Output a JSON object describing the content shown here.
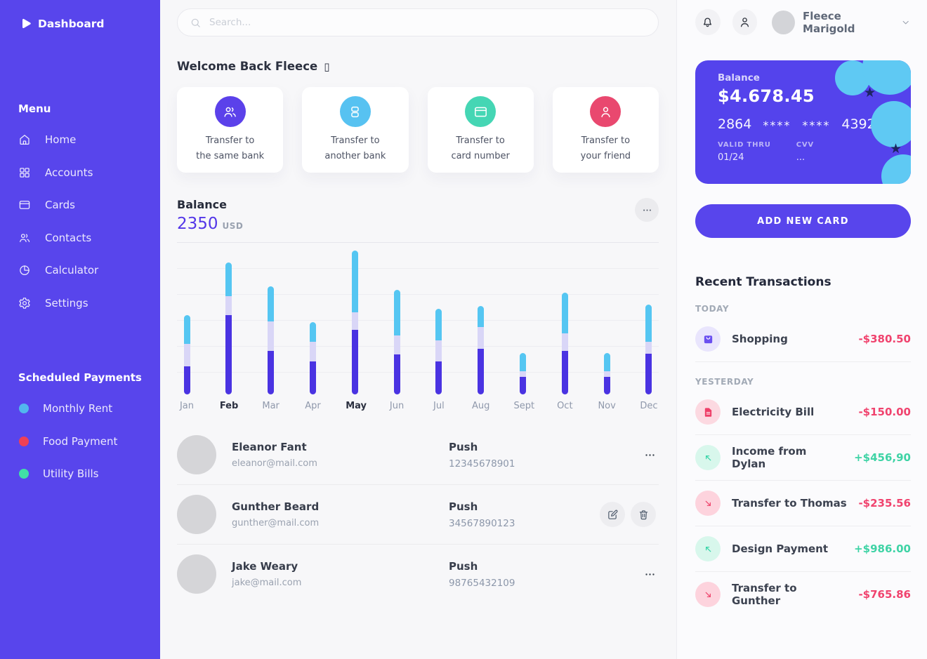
{
  "sidebar": {
    "brand": {
      "name": "Dashboard",
      "icon": "play-icon"
    },
    "menu_label": "Menu",
    "menu": [
      {
        "id": "home",
        "label": "Home",
        "icon": "home-icon"
      },
      {
        "id": "accounts",
        "label": "Accounts",
        "icon": "grid-icon"
      },
      {
        "id": "cards",
        "label": "Cards",
        "icon": "card-icon"
      },
      {
        "id": "contacts",
        "label": "Contacts",
        "icon": "users-icon"
      },
      {
        "id": "calculator",
        "label": "Calculator",
        "icon": "pie-icon"
      },
      {
        "id": "settings",
        "label": "Settings",
        "icon": "gear-icon"
      }
    ],
    "scheduled_label": "Scheduled Payments",
    "scheduled": [
      {
        "id": "monthly-rent",
        "label": "Monthly Rent",
        "dot_color": "#52b7ee"
      },
      {
        "id": "food-payment",
        "label": "Food Payment",
        "dot_color": "#ef4056"
      },
      {
        "id": "utility-bills",
        "label": "Utility Bills",
        "dot_color": "#41dfa6"
      }
    ]
  },
  "search": {
    "placeholder": "Search..."
  },
  "welcome": {
    "text": "Welcome Back Fleece",
    "glyph": "▯"
  },
  "transfer_cards": [
    {
      "id": "same-bank",
      "line1": "Transfer to",
      "line2": "the same bank",
      "icon": "users-icon",
      "color": "#5b41ea"
    },
    {
      "id": "another-bank",
      "line1": "Transfer to",
      "line2": "another bank",
      "icon": "stack-icon",
      "color": "#57c2f1"
    },
    {
      "id": "card-number",
      "line1": "Transfer to",
      "line2": "card number",
      "icon": "card-icon",
      "color": "#45d6b4"
    },
    {
      "id": "your-friend",
      "line1": "Transfer to",
      "line2": "your friend",
      "icon": "user-icon",
      "color": "#e9486f"
    }
  ],
  "balance_section": {
    "title": "Balance",
    "amount": "2350",
    "currency": "USD"
  },
  "chart_data": {
    "type": "bar",
    "stacked": true,
    "title": "Balance",
    "xlabel": "",
    "ylabel": "",
    "categories": [
      "Jan",
      "Feb",
      "Mar",
      "Apr",
      "May",
      "Jun",
      "Jul",
      "Aug",
      "Sept",
      "Oct",
      "Nov",
      "Dec"
    ],
    "emphasized_categories": [
      "Feb",
      "May"
    ],
    "series": [
      {
        "name": "primary",
        "color": "#4a33e2",
        "values": [
          40,
          113,
          62,
          47,
          92,
          57,
          47,
          65,
          25,
          62,
          25,
          58
        ]
      },
      {
        "name": "secondary",
        "color": "#d9d6f7",
        "values": [
          32,
          27,
          42,
          28,
          25,
          27,
          30,
          31,
          8,
          25,
          8,
          17
        ]
      },
      {
        "name": "tertiary",
        "color": "#55c6f2",
        "values": [
          41,
          48,
          50,
          28,
          88,
          65,
          45,
          30,
          26,
          58,
          26,
          53
        ]
      }
    ],
    "totals": [
      113,
      188,
      154,
      103,
      205,
      149,
      122,
      126,
      59,
      145,
      59,
      128
    ],
    "unit": "relative-height-px",
    "ylim": [
      0,
      217
    ],
    "grid": true,
    "gridline_count": 6,
    "gridline_spacing_px": 37,
    "legend": "none"
  },
  "contacts": [
    {
      "name": "Eleanor Fant",
      "email": "eleanor@mail.com",
      "method": "Push",
      "number": "12345678901",
      "actions": [
        "more"
      ]
    },
    {
      "name": "Gunther Beard",
      "email": "gunther@mail.com",
      "method": "Push",
      "number": "34567890123",
      "actions": [
        "edit",
        "delete"
      ]
    },
    {
      "name": "Jake Weary",
      "email": "jake@mail.com",
      "method": "Push",
      "number": "98765432109",
      "actions": [
        "more"
      ]
    }
  ],
  "topbar": {
    "user_name": "Fleece Marigold"
  },
  "credit_card": {
    "balance_label": "Balance",
    "balance": "$4.678.45",
    "number_parts": [
      "2864",
      "****",
      "****",
      "4392"
    ],
    "valid_thru_label": "VALID THRU",
    "valid_thru": "01/24",
    "cvv_label": "CVV",
    "cvv": "...",
    "color": "#5443ec"
  },
  "add_card_button": "ADD NEW CARD",
  "transactions": {
    "title": "Recent Transactions",
    "amount_colors": {
      "positive": "#3ed3a5",
      "negative": "#f0436e"
    },
    "groups": [
      {
        "label": "TODAY",
        "items": [
          {
            "title": "Shopping",
            "icon": "shopping-bag-icon",
            "icon_color": "#6a4ff0",
            "icon_bg": "#e9e5fd",
            "amount": "-$380.50",
            "direction": "negative"
          }
        ]
      },
      {
        "label": "YESTERDAY",
        "items": [
          {
            "title": "Electricity Bill",
            "icon": "document-icon",
            "icon_color": "#ee3f68",
            "icon_bg": "#fcd9e1",
            "amount": "-$150.00",
            "direction": "negative"
          },
          {
            "title": "Income from Dylan",
            "icon": "arrow-up-left-icon",
            "icon_color": "#2fd3a4",
            "icon_bg": "#d8f7ec",
            "amount": "+$456,90",
            "direction": "positive"
          },
          {
            "title": "Transfer to Thomas",
            "icon": "arrow-down-right-icon",
            "icon_color": "#ee3f68",
            "icon_bg": "#fdd3dd",
            "amount": "-$235.56",
            "direction": "negative"
          },
          {
            "title": "Design Payment",
            "icon": "arrow-up-left-icon",
            "icon_color": "#2fd3a4",
            "icon_bg": "#d8f7ec",
            "amount": "+$986.00",
            "direction": "positive"
          },
          {
            "title": "Transfer to Gunther",
            "icon": "arrow-down-right-icon",
            "icon_color": "#ee3f68",
            "icon_bg": "#fdd3dd",
            "amount": "-$765.86",
            "direction": "negative"
          }
        ]
      }
    ]
  }
}
